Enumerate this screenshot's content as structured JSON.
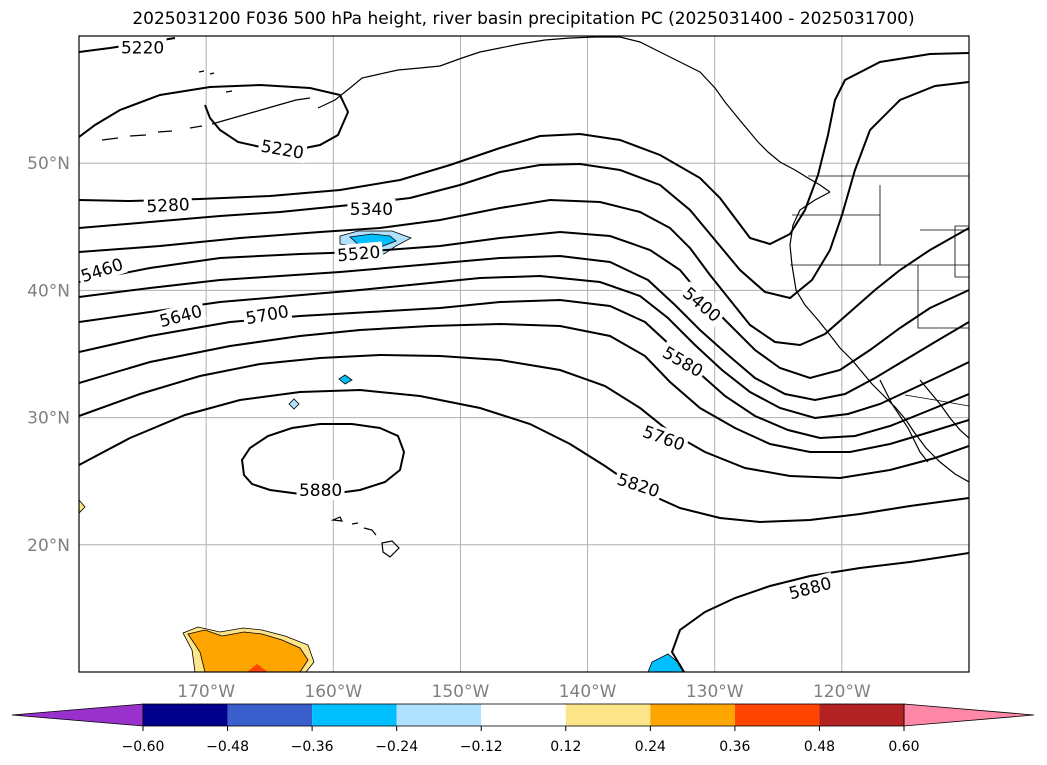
{
  "title": "2025031200 F036 500 hPa height, river basin precipitation PC (2025031400 - 2025031700)",
  "map": {
    "lon_range": [
      180,
      250
    ],
    "lat_range": [
      10,
      60
    ],
    "lat_ticks": [
      {
        "lat": 50,
        "label": "50°N"
      },
      {
        "lat": 40,
        "label": "40°N"
      },
      {
        "lat": 30,
        "label": "30°N"
      },
      {
        "lat": 20,
        "label": "20°N"
      }
    ],
    "lon_ticks": [
      {
        "lon": 190,
        "label": "170°W"
      },
      {
        "lon": 200,
        "label": "160°W"
      },
      {
        "lon": 210,
        "label": "150°W"
      },
      {
        "lon": 220,
        "label": "140°W"
      },
      {
        "lon": 230,
        "label": "130°W"
      },
      {
        "lon": 240,
        "label": "120°W"
      }
    ],
    "contour_labels": [
      {
        "text": "5220",
        "lon": 185.0,
        "lat": 59.1,
        "angle": 0
      },
      {
        "text": "5220",
        "lon": 196.0,
        "lat": 51.1,
        "angle": 10
      },
      {
        "text": "5280",
        "lon": 187.0,
        "lat": 46.7,
        "angle": -3
      },
      {
        "text": "5340",
        "lon": 203.0,
        "lat": 46.4,
        "angle": 0
      },
      {
        "text": "5460",
        "lon": 181.8,
        "lat": 41.6,
        "angle": -18
      },
      {
        "text": "5520",
        "lon": 202.0,
        "lat": 42.9,
        "angle": -5
      },
      {
        "text": "5400",
        "lon": 229.0,
        "lat": 38.9,
        "angle": 40
      },
      {
        "text": "5640",
        "lon": 188.0,
        "lat": 38.0,
        "angle": -15
      },
      {
        "text": "5700",
        "lon": 194.8,
        "lat": 38.1,
        "angle": -10
      },
      {
        "text": "5580",
        "lon": 227.5,
        "lat": 34.4,
        "angle": 30
      },
      {
        "text": "5760",
        "lon": 226.0,
        "lat": 28.4,
        "angle": 20
      },
      {
        "text": "5880",
        "lon": 199.0,
        "lat": 24.3,
        "angle": 0
      },
      {
        "text": "5820",
        "lon": 224.0,
        "lat": 24.7,
        "angle": 18
      },
      {
        "text": "5880",
        "lon": 237.5,
        "lat": 16.6,
        "angle": -15
      }
    ]
  },
  "colorbar": {
    "ticks": [
      "−0.60",
      "−0.48",
      "−0.36",
      "−0.24",
      "−0.12",
      "0.12",
      "0.24",
      "0.36",
      "0.48",
      "0.60"
    ],
    "colors": [
      "#9932cc",
      "#00008b",
      "#3a5fcd",
      "#00bfff",
      "#b0e2ff",
      "#ffffff",
      "#fde68a",
      "#ffa500",
      "#ff4500",
      "#b22222",
      "#ff88a8"
    ]
  }
}
